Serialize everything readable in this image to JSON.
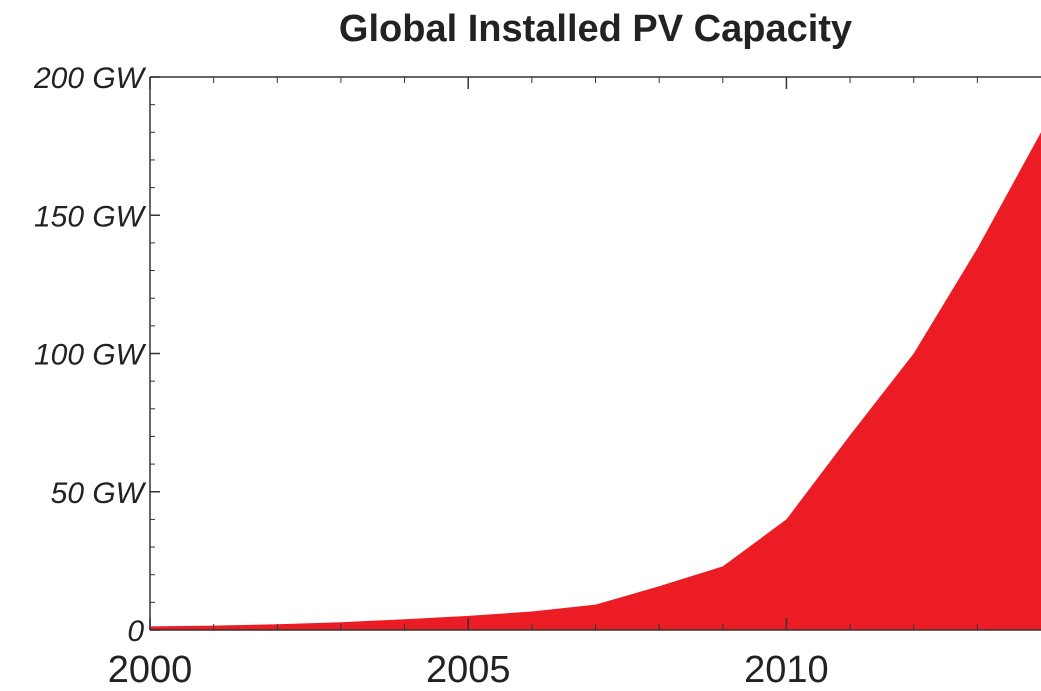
{
  "colors": {
    "area_fill": "#ec1c24",
    "axis": "#333333",
    "background": "#ffffff"
  },
  "chart_data": {
    "type": "area",
    "title": "Global Installed PV Capacity",
    "xlabel": "",
    "ylabel": "",
    "xlim": [
      2000,
      2014
    ],
    "ylim": [
      0,
      200
    ],
    "x_ticks": [
      {
        "value": 2000,
        "label": "2000"
      },
      {
        "value": 2005,
        "label": "2005"
      },
      {
        "value": 2010,
        "label": "2010"
      }
    ],
    "y_ticks": [
      {
        "value": 0,
        "label": "0"
      },
      {
        "value": 50,
        "label": "50 GW"
      },
      {
        "value": 100,
        "label": "100 GW"
      },
      {
        "value": 150,
        "label": "150 GW"
      },
      {
        "value": 200,
        "label": "200 GW"
      }
    ],
    "grid": false,
    "series": [
      {
        "x": [
          2000,
          2001,
          2002,
          2003,
          2004,
          2005,
          2006,
          2007,
          2008,
          2009,
          2010,
          2011,
          2012,
          2013,
          2014
        ],
        "values": [
          1.3,
          1.6,
          2.1,
          2.8,
          3.9,
          5.1,
          6.7,
          9.2,
          15.8,
          23.0,
          40.0,
          70.5,
          100.0,
          138.0,
          180.0
        ]
      }
    ]
  }
}
